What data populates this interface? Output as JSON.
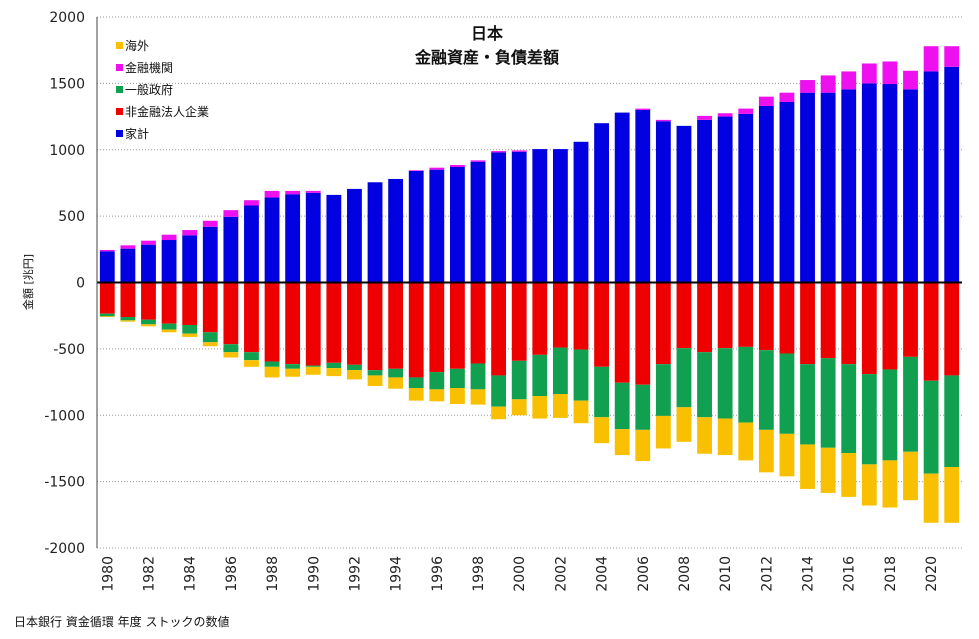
{
  "chart_data": {
    "type": "bar",
    "stacked": true,
    "title": "日本",
    "subtitle": "金融資産・負債差額",
    "ylabel": "金額 [兆円]",
    "ylim": [
      -2000,
      2000
    ],
    "yticks": [
      2000,
      1500,
      1000,
      500,
      0,
      -500,
      -1000,
      -1500,
      -2000
    ],
    "grid": true,
    "legend_position": "top-left",
    "x_tick_labels": [
      "1980",
      "1982",
      "1984",
      "1986",
      "1988",
      "1990",
      "1992",
      "1994",
      "1996",
      "1998",
      "2000",
      "2002",
      "2004",
      "2006",
      "2008",
      "2010",
      "2012",
      "2014",
      "2016",
      "2018",
      "2020"
    ],
    "categories": [
      1980,
      1981,
      1982,
      1983,
      1984,
      1985,
      1986,
      1987,
      1988,
      1989,
      1990,
      1991,
      1992,
      1993,
      1994,
      1995,
      1996,
      1997,
      1998,
      1999,
      2000,
      2001,
      2002,
      2003,
      2004,
      2005,
      2006,
      2007,
      2008,
      2009,
      2010,
      2011,
      2012,
      2013,
      2014,
      2015,
      2016,
      2017,
      2018,
      2019,
      2020,
      2021
    ],
    "series": [
      {
        "name": "家計",
        "color": "#0000e0",
        "values": [
          235,
          255,
          285,
          320,
          355,
          420,
          495,
          580,
          640,
          665,
          675,
          660,
          705,
          755,
          780,
          840,
          850,
          870,
          910,
          980,
          985,
          1005,
          1005,
          1060,
          1200,
          1280,
          1300,
          1215,
          1180,
          1225,
          1250,
          1270,
          1330,
          1360,
          1430,
          1430,
          1455,
          1500,
          1495,
          1455,
          1590,
          1625
        ]
      },
      {
        "name": "金融機関",
        "color": "#ee10ee",
        "values": [
          10,
          25,
          30,
          40,
          40,
          45,
          50,
          40,
          50,
          25,
          15,
          0,
          0,
          0,
          0,
          5,
          15,
          15,
          10,
          10,
          10,
          0,
          0,
          0,
          0,
          0,
          10,
          10,
          0,
          30,
          25,
          40,
          70,
          70,
          95,
          130,
          135,
          150,
          170,
          140,
          190,
          155
        ]
      },
      {
        "name": "非金融法人企業",
        "color": "#ee0000",
        "values": [
          -235,
          -260,
          -280,
          -310,
          -320,
          -375,
          -465,
          -525,
          -595,
          -615,
          -625,
          -605,
          -620,
          -660,
          -650,
          -715,
          -675,
          -650,
          -610,
          -700,
          -590,
          -545,
          -490,
          -505,
          -635,
          -755,
          -770,
          -615,
          -495,
          -525,
          -495,
          -485,
          -510,
          -535,
          -615,
          -570,
          -615,
          -690,
          -655,
          -560,
          -740,
          -700
        ]
      },
      {
        "name": "一般政府",
        "color": "#10a050",
        "values": [
          -20,
          -25,
          -35,
          -45,
          -65,
          -75,
          -60,
          -60,
          -40,
          -35,
          -10,
          -40,
          -40,
          -40,
          -65,
          -80,
          -130,
          -145,
          -195,
          -235,
          -290,
          -310,
          -350,
          -385,
          -380,
          -350,
          -340,
          -390,
          -445,
          -490,
          -530,
          -570,
          -600,
          -605,
          -605,
          -675,
          -670,
          -680,
          -685,
          -715,
          -700,
          -690
        ]
      },
      {
        "name": "海外",
        "color": "#f8c000",
        "values": [
          -5,
          -10,
          -15,
          -20,
          -25,
          -30,
          -40,
          -50,
          -80,
          -60,
          -60,
          -60,
          -70,
          -80,
          -85,
          -95,
          -90,
          -120,
          -115,
          -95,
          -120,
          -170,
          -180,
          -170,
          -195,
          -195,
          -235,
          -245,
          -260,
          -275,
          -275,
          -285,
          -320,
          -320,
          -335,
          -340,
          -330,
          -310,
          -355,
          -365,
          -370,
          -420
        ]
      }
    ]
  },
  "source": "日本銀行 資金循環 年度 ストックの数値"
}
